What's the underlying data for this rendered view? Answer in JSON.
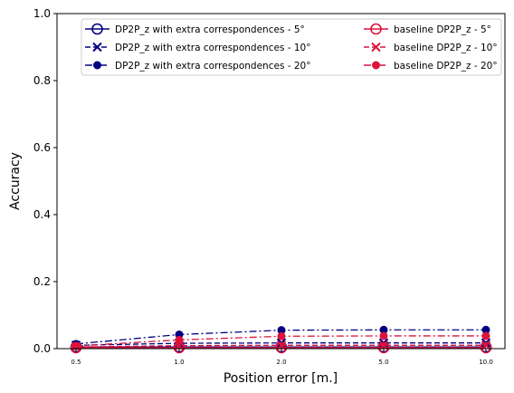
{
  "chart_data": {
    "type": "line",
    "title": "",
    "xlabel": "Position error [m.]",
    "ylabel": "Accuracy",
    "categories": [
      "0.5",
      "1.0",
      "2.0",
      "5.0",
      "10.0"
    ],
    "ylim": [
      0,
      1
    ],
    "yticks": [
      "0.0",
      "0.2",
      "0.4",
      "0.6",
      "0.8",
      "1.0"
    ],
    "grid": false,
    "legend_position": "top-right",
    "colors": {
      "navy": "#000080",
      "crimson": "#dc143c"
    },
    "series": [
      {
        "name": "DP2P_z with extra correspondences - 5°",
        "color": "#000080",
        "marker": "circle-open",
        "linestyle": "solid",
        "values": [
          0.005,
          0.005,
          0.005,
          0.005,
          0.005
        ]
      },
      {
        "name": "DP2P_z with extra correspondences - 10°",
        "color": "#000080",
        "marker": "x",
        "linestyle": "dashed",
        "values": [
          0.01,
          0.016,
          0.017,
          0.017,
          0.017
        ]
      },
      {
        "name": "DP2P_z with extra correspondences - 20°",
        "color": "#000080",
        "marker": "dot",
        "linestyle": "dashdot",
        "values": [
          0.014,
          0.042,
          0.055,
          0.056,
          0.056
        ]
      },
      {
        "name": "baseline DP2P_z - 5°",
        "color": "#dc143c",
        "marker": "circle-open",
        "linestyle": "solid",
        "values": [
          0.003,
          0.003,
          0.003,
          0.003,
          0.003
        ]
      },
      {
        "name": "baseline DP2P_z - 10°",
        "color": "#dc143c",
        "marker": "x",
        "linestyle": "dashed",
        "values": [
          0.005,
          0.009,
          0.01,
          0.01,
          0.01
        ]
      },
      {
        "name": "baseline DP2P_z - 20°",
        "color": "#dc143c",
        "marker": "dot",
        "linestyle": "dashdot",
        "values": [
          0.008,
          0.026,
          0.037,
          0.038,
          0.038
        ]
      }
    ]
  }
}
